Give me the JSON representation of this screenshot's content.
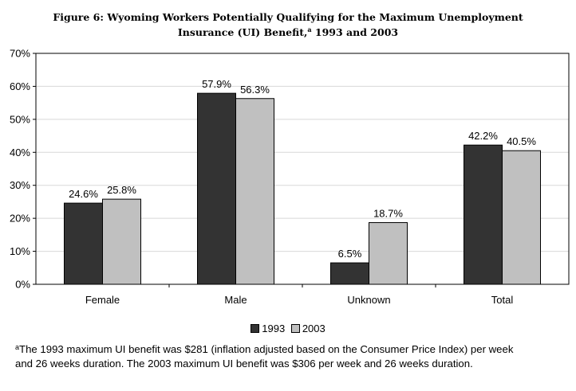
{
  "title": {
    "line1": "Figure 6: Wyoming Workers Potentially Qualifying for the Maximum Unemployment",
    "line2_before": "Insurance (UI) Benefit,",
    "line2_sup": "a",
    "line2_after": " 1993 and 2003"
  },
  "chart_data": {
    "type": "bar",
    "categories": [
      "Female",
      "Male",
      "Unknown",
      "Total"
    ],
    "series": [
      {
        "name": "1993",
        "values": [
          24.6,
          57.9,
          6.5,
          42.2
        ],
        "labels": [
          "24.6%",
          "57.9%",
          "6.5%",
          "42.2%"
        ],
        "color": "#333333"
      },
      {
        "name": "2003",
        "values": [
          25.8,
          56.3,
          18.7,
          40.5
        ],
        "labels": [
          "25.8%",
          "56.3%",
          "18.7%",
          "40.5%"
        ],
        "color": "#c0c0c0"
      }
    ],
    "ylim": [
      0,
      70
    ],
    "yticks": [
      0,
      10,
      20,
      30,
      40,
      50,
      60,
      70
    ],
    "ytick_labels": [
      "0%",
      "10%",
      "20%",
      "30%",
      "40%",
      "50%",
      "60%",
      "70%"
    ],
    "grid": true,
    "legend_position": "bottom"
  },
  "footnote": {
    "marker": "a",
    "line1": "The 1993 maximum UI benefit was $281 (inflation adjusted based on the Consumer Price Index) per week",
    "line2": "and 26 weeks duration. The 2003 maximum UI benefit was $306 per week and 26 weeks duration."
  }
}
